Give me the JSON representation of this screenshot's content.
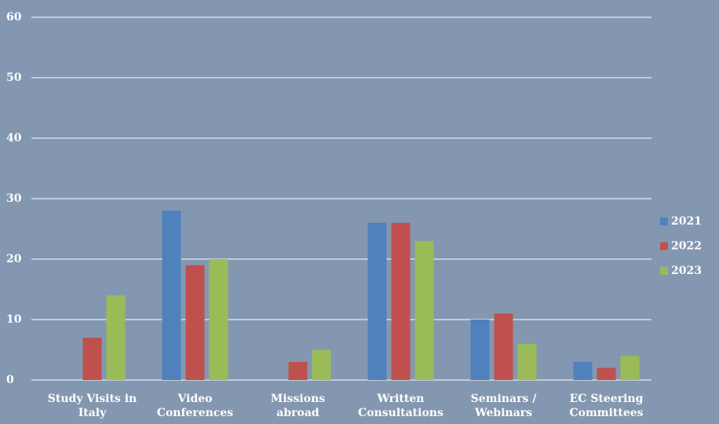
{
  "chart_data": {
    "type": "bar",
    "categories": [
      "Study Visits in Italy",
      "Video Conferences",
      "Missions abroad",
      "Written Consultations",
      "Seminars / Webinars",
      "EC Steering Committees"
    ],
    "series": [
      {
        "name": "2021",
        "color": "#4f81bd",
        "values": [
          0,
          28,
          0,
          26,
          10,
          3
        ]
      },
      {
        "name": "2022",
        "color": "#c0504d",
        "values": [
          7,
          19,
          3,
          26,
          11,
          2
        ]
      },
      {
        "name": "2023",
        "color": "#9bbb59",
        "values": [
          14,
          20,
          5,
          23,
          6,
          4
        ]
      }
    ],
    "ylim": [
      0,
      60
    ],
    "yticks": [
      0,
      10,
      20,
      30,
      40,
      50,
      60
    ],
    "grid": true,
    "legend": "right"
  }
}
